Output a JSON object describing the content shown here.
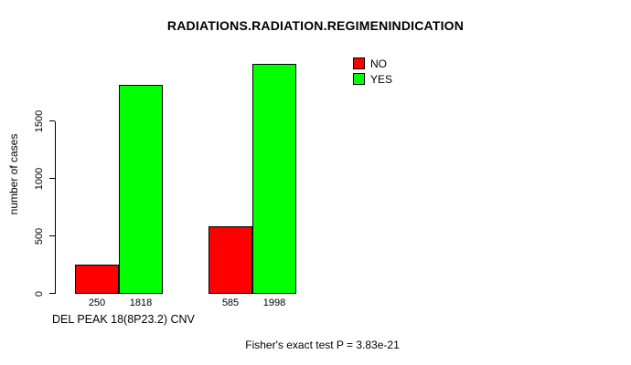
{
  "chart_data": {
    "type": "bar",
    "title": "RADIATIONS.RADIATION.REGIMENINDICATION",
    "ylabel": "number of cases",
    "xlabel": "DEL PEAK 18(8P23.2) CNV",
    "footer": "Fisher's exact test P = 3.83e-21",
    "yticks": [
      0,
      500,
      1000,
      1500
    ],
    "ylim": [
      0,
      2100
    ],
    "grid": false,
    "legend_position": "top-right",
    "categories": [
      "",
      ""
    ],
    "series": [
      {
        "name": "NO",
        "color": "#ff0000",
        "values": [
          250,
          585
        ]
      },
      {
        "name": "YES",
        "color": "#00ff00",
        "values": [
          1818,
          1998
        ]
      }
    ],
    "bar_value_labels": [
      "250",
      "1818",
      "585",
      "1998"
    ]
  }
}
